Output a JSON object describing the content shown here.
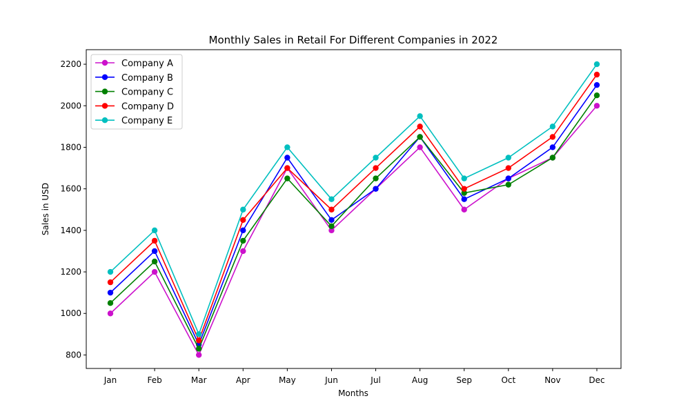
{
  "chart_data": {
    "type": "line",
    "title": "Monthly Sales in Retail For Different Companies in 2022",
    "xlabel": "Months",
    "ylabel": "Sales in USD",
    "categories": [
      "Jan",
      "Feb",
      "Mar",
      "Apr",
      "May",
      "Jun",
      "Jul",
      "Aug",
      "Sep",
      "Oct",
      "Nov",
      "Dec"
    ],
    "ylim": [
      735,
      2270
    ],
    "yticks": [
      800,
      1000,
      1200,
      1400,
      1600,
      1800,
      2000,
      2200
    ],
    "grid": false,
    "legend_position": "top-left",
    "marker": "circle",
    "series": [
      {
        "name": "Company A",
        "color": "#cc11cc",
        "values": [
          1000,
          1200,
          800,
          1300,
          1700,
          1400,
          1600,
          1800,
          1500,
          1650,
          1750,
          2000
        ]
      },
      {
        "name": "Company B",
        "color": "#0000ff",
        "values": [
          1100,
          1300,
          850,
          1400,
          1750,
          1450,
          1600,
          1850,
          1550,
          1650,
          1800,
          2100
        ]
      },
      {
        "name": "Company C",
        "color": "#008000",
        "values": [
          1050,
          1250,
          830,
          1350,
          1650,
          1420,
          1650,
          1850,
          1580,
          1620,
          1750,
          2050
        ]
      },
      {
        "name": "Company D",
        "color": "#ff0000",
        "values": [
          1150,
          1350,
          870,
          1450,
          1700,
          1500,
          1700,
          1900,
          1600,
          1700,
          1850,
          2150
        ]
      },
      {
        "name": "Company E",
        "color": "#00bfbf",
        "values": [
          1200,
          1400,
          900,
          1500,
          1800,
          1550,
          1750,
          1950,
          1650,
          1750,
          1900,
          2200
        ]
      }
    ]
  }
}
